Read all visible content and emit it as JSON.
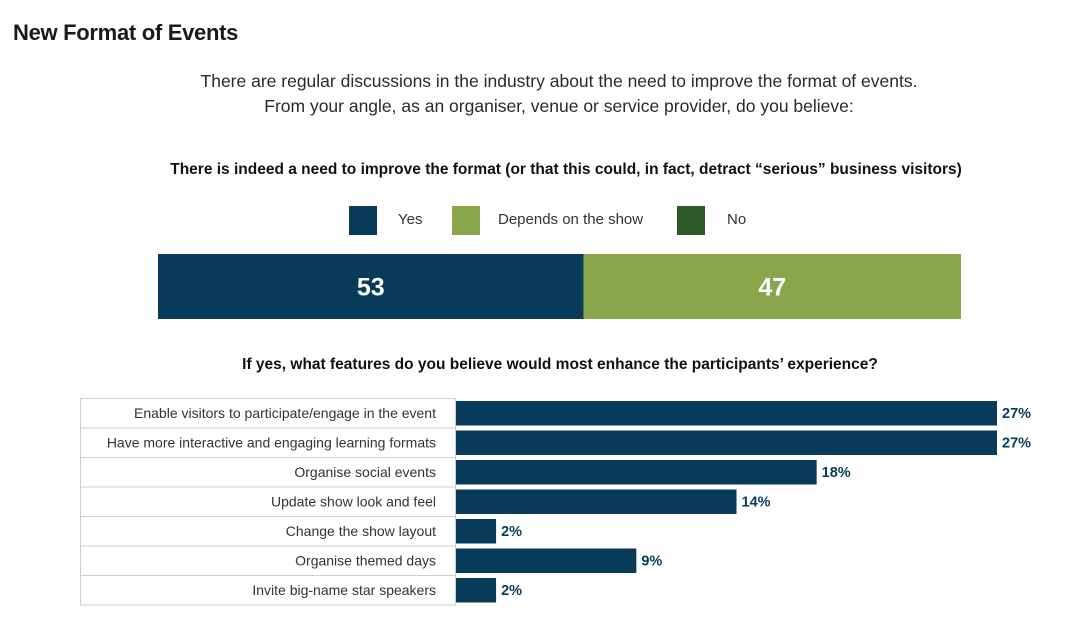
{
  "page_title": "New Format of Events",
  "intro": {
    "line1": "There are regular discussions in the industry about the need to improve the format of events.",
    "line2": "From your angle, as an organiser, venue or service provider, do you believe:"
  },
  "colors": {
    "yes": "#083a5a",
    "depends": "#8aa64d",
    "no": "#2e5a2a",
    "bar": "#083a5a",
    "text_on_bar": "#ffffff",
    "row_border": "#c9cfd6"
  },
  "chart_data": [
    {
      "type": "bar",
      "orientation": "horizontal-stacked",
      "title": "There is indeed a need to improve the format (or that this could, in fact, detract “serious” business visitors)",
      "legend": [
        "Yes",
        "Depends on the show",
        "No"
      ],
      "series": [
        {
          "name": "Yes",
          "values": [
            53
          ]
        },
        {
          "name": "Depends on the show",
          "values": [
            47
          ]
        },
        {
          "name": "No",
          "values": [
            0
          ]
        }
      ],
      "value_labels": [
        "53",
        "47"
      ],
      "xlim": [
        0,
        100
      ]
    },
    {
      "type": "bar",
      "orientation": "horizontal",
      "title": "If yes, what features do you believe would most enhance the participants’ experience?",
      "categories": [
        "Enable visitors to participate/engage in the event",
        "Have more interactive and engaging learning formats",
        "Organise social events",
        "Update show look and feel",
        "Change the show layout",
        "Organise themed days",
        "Invite big-name star speakers"
      ],
      "values": [
        27,
        27,
        18,
        14,
        2,
        9,
        2
      ],
      "value_labels": [
        "27%",
        "27%",
        "18%",
        "14%",
        "2%",
        "9%",
        "2%"
      ],
      "unit": "%",
      "xlim": [
        0,
        27
      ]
    }
  ]
}
